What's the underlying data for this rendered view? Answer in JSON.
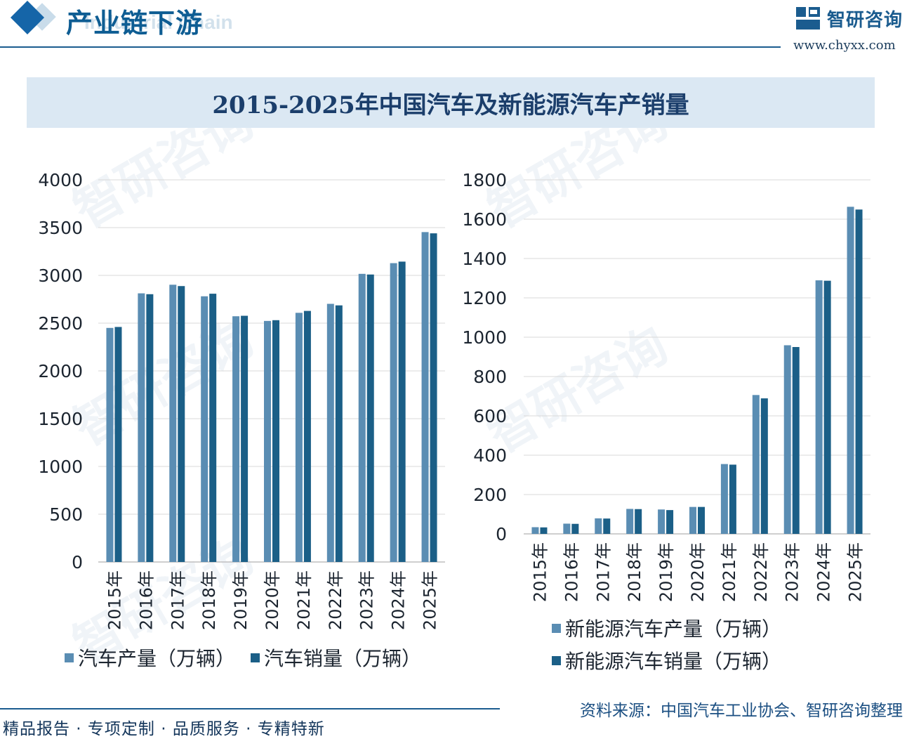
{
  "header": {
    "title": "产业链下游",
    "ghost": "Industrial Chain",
    "logo_text": "智研咨询",
    "logo_url": "www.chyxx.com"
  },
  "chart_title": "2015-2025年中国汽车及新能源汽车产销量",
  "colors": {
    "production": "#5a8db3",
    "sales": "#1b5f87",
    "grid": "#d9d9d9"
  },
  "chart_data": [
    {
      "type": "bar",
      "categories": [
        "2015年",
        "2016年",
        "2017年",
        "2018年",
        "2019年",
        "2020年",
        "2021年",
        "2022年",
        "2023年",
        "2024年",
        "2025年"
      ],
      "series": [
        {
          "name": "汽车产量（万辆）",
          "values": [
            2450,
            2812,
            2902,
            2781,
            2572,
            2523,
            2608,
            2702,
            3016,
            3128,
            3453
          ]
        },
        {
          "name": "汽车销量（万辆）",
          "values": [
            2460,
            2803,
            2888,
            2808,
            2577,
            2531,
            2628,
            2686,
            3009,
            3144,
            3440
          ]
        }
      ],
      "ylim": [
        0,
        4000
      ],
      "yticks": [
        0,
        500,
        1000,
        1500,
        2000,
        2500,
        3000,
        3500,
        4000
      ],
      "grid": true,
      "legend": "bottom"
    },
    {
      "type": "bar",
      "categories": [
        "2015年",
        "2016年",
        "2017年",
        "2018年",
        "2019年",
        "2020年",
        "2021年",
        "2022年",
        "2023年",
        "2024年",
        "2025年"
      ],
      "series": [
        {
          "name": "新能源汽车产量（万辆）",
          "values": [
            34,
            52,
            79,
            127,
            124,
            137,
            355,
            706,
            959,
            1289,
            1663
          ]
        },
        {
          "name": "新能源汽车销量（万辆）",
          "values": [
            33,
            51,
            78,
            126,
            121,
            137,
            352,
            689,
            950,
            1287,
            1649
          ]
        }
      ],
      "ylim": [
        0,
        1800
      ],
      "yticks": [
        0,
        200,
        400,
        600,
        800,
        1000,
        1200,
        1400,
        1600,
        1800
      ],
      "grid": true,
      "legend": "bottom"
    }
  ],
  "footer": {
    "tagline": "精品报告 · 专项定制 · 品质服务 · 专精特新",
    "source": "资料来源：中国汽车工业协会、智研咨询整理"
  }
}
